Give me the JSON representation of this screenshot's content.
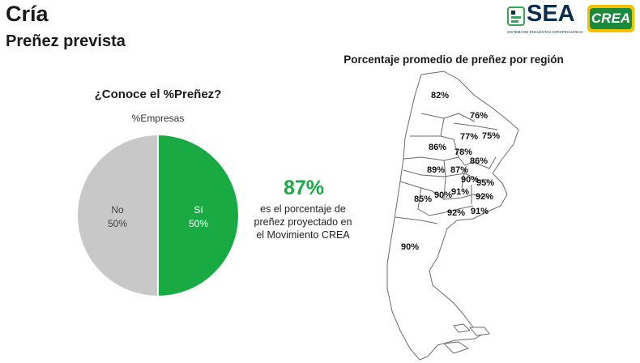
{
  "header": {
    "title": "Cría",
    "subtitle": "Preñez prevista"
  },
  "logos": {
    "sea": "SEA",
    "sea_small": "SISTEMA DE ENCUESTAS AGROPECUARIAS",
    "crea": "CREA"
  },
  "colors": {
    "green": "#1aaa44",
    "gray": "#c8c8c8",
    "navy": "#0b2e4f"
  },
  "chart_data": [
    {
      "type": "pie",
      "title": "¿Conoce el %Preñez?",
      "subtitle": "%Empresas",
      "slices": [
        {
          "label": "Sí",
          "value": 50,
          "display": "50%",
          "color": "#1aaa44"
        },
        {
          "label": "No",
          "value": 50,
          "display": "50%",
          "color": "#c8c8c8"
        }
      ]
    },
    {
      "type": "map",
      "title": "Porcentaje promedio de preñez por región",
      "regions": [
        {
          "label": "82%",
          "value": 82
        },
        {
          "label": "76%",
          "value": 76
        },
        {
          "label": "77%",
          "value": 77
        },
        {
          "label": "75%",
          "value": 75
        },
        {
          "label": "86%",
          "value": 86
        },
        {
          "label": "78%",
          "value": 78
        },
        {
          "label": "86%",
          "value": 86
        },
        {
          "label": "89%",
          "value": 89
        },
        {
          "label": "87%",
          "value": 87
        },
        {
          "label": "90%",
          "value": 90
        },
        {
          "label": "95%",
          "value": 95
        },
        {
          "label": "85%",
          "value": 85
        },
        {
          "label": "90%",
          "value": 90
        },
        {
          "label": "91%",
          "value": 91
        },
        {
          "label": "92%",
          "value": 92
        },
        {
          "label": "92%",
          "value": 92
        },
        {
          "label": "91%",
          "value": 91
        },
        {
          "label": "90%",
          "value": 90
        }
      ]
    }
  ],
  "highlight": {
    "value": "87%",
    "description": "es el porcentaje de preñez proyectado en el Movimiento CREA"
  }
}
